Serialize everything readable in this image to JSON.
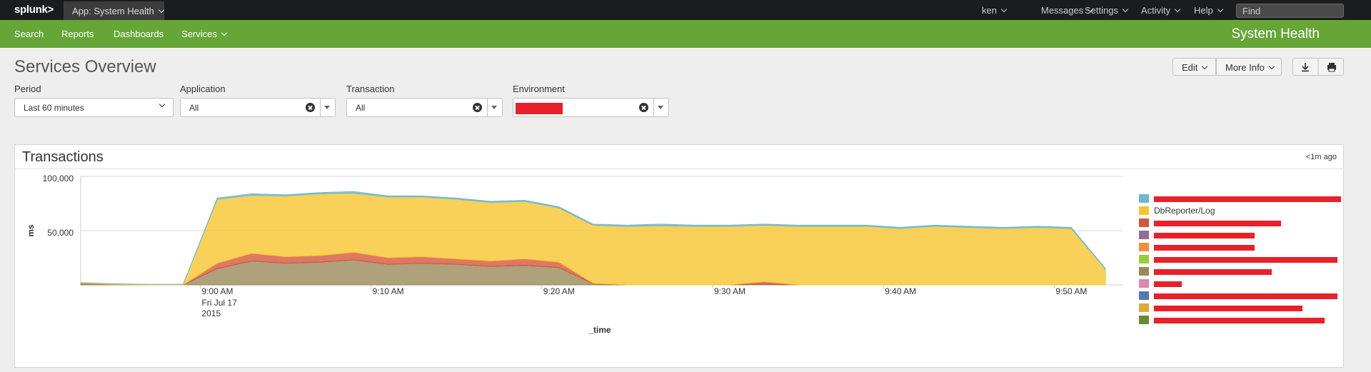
{
  "top_bar": {
    "logo": "splunk>",
    "app": "App: System Health",
    "menus": [
      "ken",
      "Messages",
      "Settings",
      "Activity",
      "Help"
    ],
    "search_placeholder": "Find"
  },
  "nav": {
    "items": [
      "Search",
      "Reports",
      "Dashboards",
      "Services"
    ],
    "app_title": "System Health"
  },
  "dashboard": {
    "title": "Services Overview",
    "buttons": [
      "Edit",
      "More Info"
    ],
    "inputs": [
      {
        "label": "Period",
        "value": "Last 60 minutes"
      },
      {
        "label": "Application",
        "value": "All"
      },
      {
        "label": "Transaction",
        "value": "All"
      },
      {
        "label": "Environment"
      }
    ]
  },
  "panel": {
    "title": "Transactions",
    "updated": "<1m ago"
  },
  "chart_data": {
    "type": "stacked_area",
    "y_label": "ms",
    "x_label": "_time",
    "date_label": [
      "Fri Jul 17",
      "2015"
    ],
    "x": [
      "08:53",
      "08:55",
      "08:57",
      "08:59",
      "09:01",
      "09:03",
      "09:05",
      "09:07",
      "09:09",
      "09:11",
      "09:13",
      "09:15",
      "09:17",
      "09:19",
      "09:21",
      "09:23",
      "09:25",
      "09:27",
      "09:29",
      "09:31",
      "09:33",
      "09:35",
      "09:37",
      "09:39",
      "09:41",
      "09:43",
      "09:45",
      "09:47",
      "09:49",
      "09:51",
      "09:53"
    ],
    "xlim": [
      "08:53",
      "09:54"
    ],
    "xticks": [
      {
        "value": "09:00",
        "label": "9:00 AM"
      },
      {
        "value": "09:10",
        "label": "9:10 AM"
      },
      {
        "value": "09:20",
        "label": "9:20 AM"
      },
      {
        "value": "09:30",
        "label": "9:30 AM"
      },
      {
        "value": "09:40",
        "label": "9:40 AM"
      },
      {
        "value": "09:50",
        "label": "9:50 AM"
      }
    ],
    "ylim": [
      0,
      100000
    ],
    "yticks": [
      {
        "value": 50000,
        "label": "50,000"
      },
      {
        "value": 100000,
        "label": "100,000"
      }
    ],
    "grid": true,
    "legend": "right",
    "series": [
      {
        "color": "#6cb8d0",
        "values": [
          0,
          0,
          0,
          0,
          1000,
          1500,
          1000,
          1000,
          1500,
          1000,
          1000,
          1000,
          1000,
          1000,
          1000,
          1000,
          1000,
          1500,
          1000,
          1000,
          1000,
          1000,
          1000,
          1000,
          1000,
          1000,
          1000,
          1000,
          1000,
          1000,
          500
        ]
      },
      {
        "name": "DbReporter/Log",
        "color": "#f7c52e",
        "values": [
          500,
          500,
          500,
          500,
          59000,
          53500,
          56000,
          57000,
          54500,
          56000,
          55000,
          55000,
          54000,
          53000,
          50000,
          53500,
          54000,
          54500,
          54000,
          54000,
          52000,
          54000,
          54000,
          54000,
          52000,
          54000,
          53000,
          52000,
          53000,
          52000,
          14500
        ]
      },
      {
        "color": "#d6563c",
        "values": [
          500,
          0,
          0,
          0,
          5000,
          7000,
          6000,
          6000,
          7000,
          6000,
          6000,
          5000,
          5000,
          6000,
          5000,
          500,
          0,
          0,
          0,
          0,
          2000,
          0,
          0,
          0,
          0,
          0,
          0,
          0,
          0,
          0,
          0
        ]
      },
      {
        "color": "#956d95",
        "values": [
          0,
          0,
          0,
          0,
          0,
          0,
          0,
          0,
          0,
          0,
          0,
          0,
          0,
          0,
          0,
          0,
          0,
          0,
          0,
          0,
          0,
          0,
          0,
          0,
          0,
          0,
          0,
          0,
          0,
          0,
          0
        ]
      },
      {
        "color": "#f58f39",
        "values": [
          0,
          0,
          0,
          0,
          0,
          0,
          0,
          0,
          0,
          0,
          0,
          0,
          0,
          0,
          0,
          0,
          0,
          0,
          0,
          0,
          0,
          0,
          0,
          0,
          0,
          0,
          0,
          0,
          0,
          0,
          0
        ]
      },
      {
        "color": "#97cc3d",
        "values": [
          0,
          0,
          0,
          0,
          0,
          0,
          0,
          0,
          0,
          0,
          0,
          0,
          0,
          0,
          0,
          0,
          0,
          0,
          0,
          0,
          0,
          0,
          0,
          0,
          0,
          0,
          0,
          0,
          0,
          0,
          0
        ]
      },
      {
        "color": "#9a8a5a",
        "values": [
          1000,
          500,
          0,
          0,
          15000,
          22000,
          20000,
          21000,
          23000,
          19000,
          20000,
          19000,
          17000,
          18000,
          16000,
          1000,
          0,
          0,
          0,
          0,
          1000,
          0,
          0,
          0,
          0,
          0,
          0,
          0,
          0,
          0,
          0
        ]
      },
      {
        "color": "#dd86af",
        "values": [
          0,
          0,
          0,
          0,
          0,
          0,
          0,
          0,
          0,
          0,
          0,
          0,
          0,
          0,
          0,
          0,
          0,
          0,
          0,
          0,
          0,
          0,
          0,
          0,
          0,
          0,
          0,
          0,
          0,
          0,
          0
        ]
      },
      {
        "color": "#5479af",
        "values": [
          0,
          0,
          0,
          0,
          0,
          0,
          0,
          0,
          0,
          0,
          0,
          0,
          0,
          0,
          0,
          0,
          0,
          0,
          0,
          0,
          0,
          0,
          0,
          0,
          0,
          0,
          0,
          0,
          0,
          0,
          0
        ]
      },
      {
        "color": "#e0a939",
        "values": [
          0,
          0,
          0,
          0,
          0,
          0,
          0,
          0,
          0,
          0,
          0,
          0,
          0,
          0,
          0,
          0,
          0,
          0,
          0,
          0,
          0,
          0,
          0,
          0,
          0,
          0,
          0,
          0,
          0,
          0,
          0
        ]
      },
      {
        "color": "#6b8930",
        "values": [
          0,
          0,
          0,
          0,
          0,
          0,
          0,
          0,
          0,
          0,
          0,
          0,
          0,
          0,
          0,
          0,
          0,
          0,
          0,
          0,
          0,
          0,
          0,
          0,
          0,
          0,
          0,
          0,
          0,
          0,
          0
        ]
      }
    ]
  }
}
